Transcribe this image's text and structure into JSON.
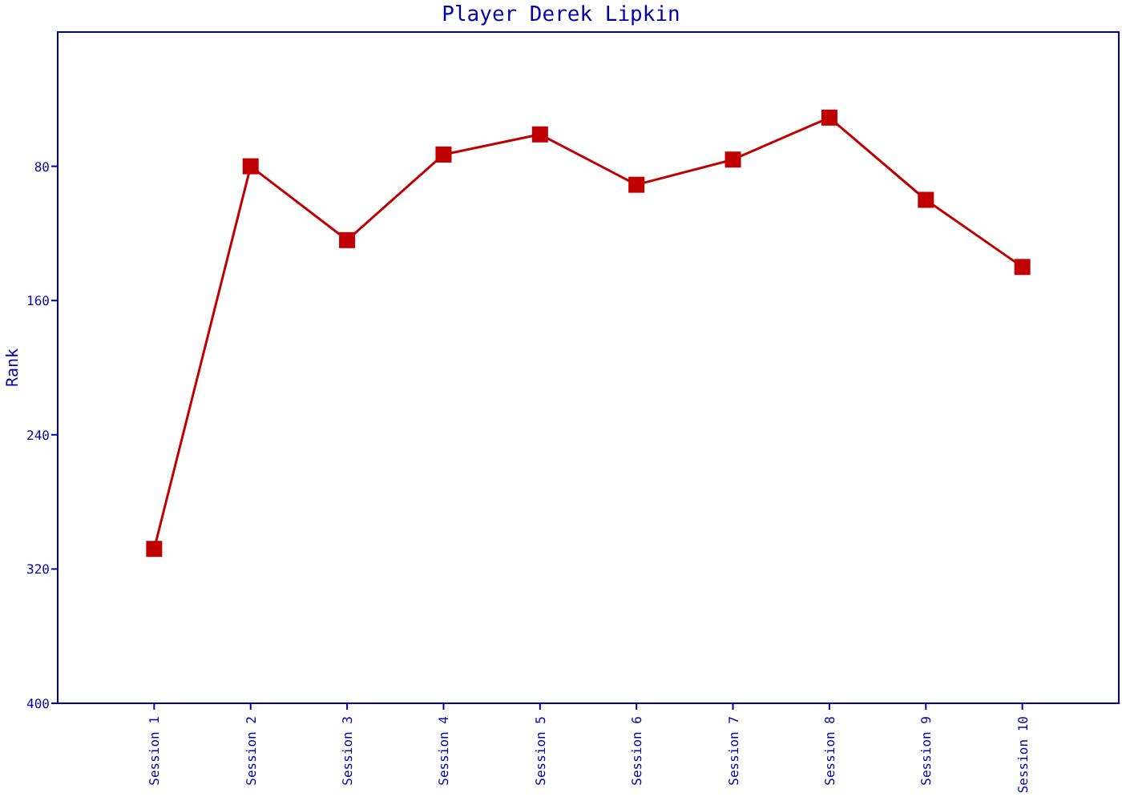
{
  "chart_data": {
    "type": "line",
    "title": "Player Derek Lipkin",
    "ylabel": "Rank",
    "categories": [
      "Session 1",
      "Session 2",
      "Session 3",
      "Session 4",
      "Session 5",
      "Session 6",
      "Session 7",
      "Session 8",
      "Session 9",
      "Session 10"
    ],
    "series": [
      {
        "color": "#c00000",
        "values": [
          308,
          80,
          124,
          73,
          61,
          91,
          76,
          51,
          100,
          140
        ]
      }
    ],
    "ylim": [
      400,
      0
    ],
    "yticks": [
      80,
      160,
      240,
      320,
      400
    ],
    "grid": false,
    "marker": "square",
    "line_style": "solid"
  }
}
